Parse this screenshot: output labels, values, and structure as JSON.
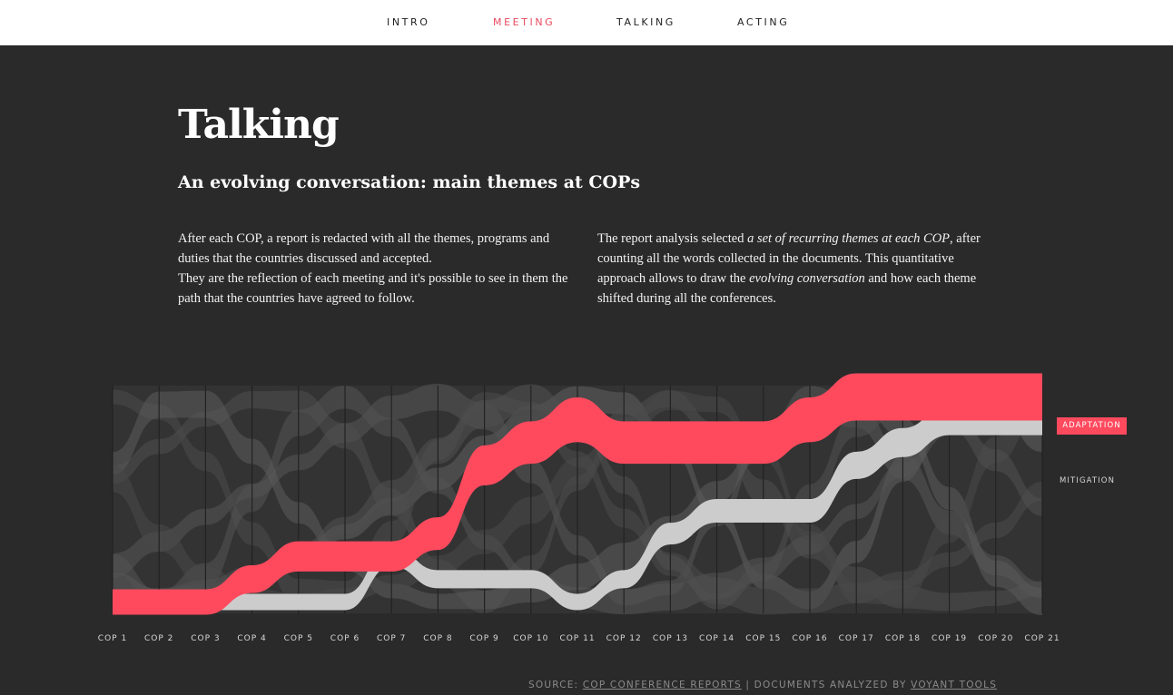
{
  "nav": {
    "items": [
      {
        "label": "INTRO",
        "active": false
      },
      {
        "label": "MEETING",
        "active": true
      },
      {
        "label": "TALKING",
        "active": false
      },
      {
        "label": "ACTING",
        "active": false
      }
    ]
  },
  "page": {
    "title": "Talking",
    "subtitle": "An evolving conversation: main themes at COPs",
    "left_p1": "After each COP, a report is redacted with all the themes, programs and duties that the countries discussed and accepted.",
    "left_p2": "They are the reflection of each meeting and it's possible to see in them the path that the countries have agreed to follow.",
    "right_pre": "The report analysis selected ",
    "right_em1": "a set of recurring themes at each COP",
    "right_mid": ", after counting all the words collected in the documents. This quantitative approach allows to draw the ",
    "right_em2": "evolving conversation",
    "right_post": " and how each theme shifted during all the conferences."
  },
  "colors": {
    "background": "#2a2a2a",
    "adaptation": "#ff4a5e",
    "mitigation": "#cccccc",
    "other_themes": "#5a5a5a",
    "nav_active": "#e84a5f"
  },
  "chart_data": {
    "type": "area",
    "subtype": "bump streamgraph (ranked themes per conference)",
    "categories": [
      "COP 1",
      "COP 2",
      "COP 3",
      "COP 4",
      "COP 5",
      "COP 6",
      "COP 7",
      "COP 8",
      "COP 9",
      "COP 10",
      "COP 11",
      "COP 12",
      "COP 13",
      "COP 14",
      "COP 15",
      "COP 16",
      "COP 17",
      "COP 18",
      "COP 19",
      "COP 20",
      "COP 21"
    ],
    "series": [
      {
        "name": "ADAPTATION",
        "highlight": "red",
        "rank": [
          10,
          10,
          10,
          9,
          8,
          8,
          8,
          7,
          4,
          3,
          2,
          3,
          3,
          3,
          3,
          2,
          1,
          1,
          1,
          1,
          1
        ]
      },
      {
        "name": "MITIGATION",
        "highlight": "gray",
        "rank": [
          10,
          10,
          10,
          10,
          10,
          10,
          8,
          9,
          9,
          9,
          10,
          9,
          7,
          6,
          6,
          6,
          4,
          3,
          2,
          2,
          2
        ]
      }
    ],
    "other_series_count": 8,
    "legend": "right of chart",
    "grid": "vertical separators at each COP"
  },
  "source": {
    "prefix": "SOURCE: ",
    "link1": "COP CONFERENCE REPORTS",
    "sep": " | DOCUMENTS ANALYZED BY ",
    "link2": "VOYANT TOOLS"
  }
}
